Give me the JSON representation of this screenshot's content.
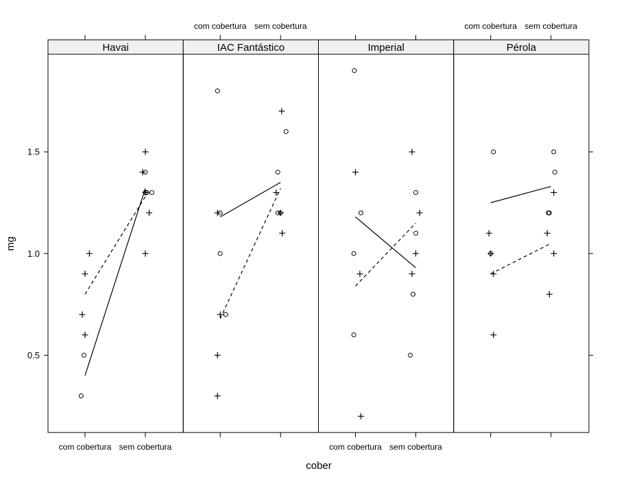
{
  "chart_data": {
    "type": "scatter",
    "title": "",
    "xlabel": "cober",
    "ylabel": "mg",
    "categories": [
      "com cobertura",
      "sem cobertura"
    ],
    "yticks": [
      "0.5",
      "1.0",
      "1.5"
    ],
    "ylim": [
      0.12,
      1.98
    ],
    "grid": false,
    "legend": "none",
    "series": [
      {
        "marker": "circle",
        "linestyle": "solid"
      },
      {
        "marker": "plus",
        "linestyle": "dashed"
      }
    ],
    "panels": [
      {
        "label": "Havai",
        "points": [
          {
            "group": 0,
            "cat": 0,
            "y": 0.3,
            "jit": -0.07
          },
          {
            "group": 0,
            "cat": 0,
            "y": 0.5,
            "jit": -0.02
          },
          {
            "group": 1,
            "cat": 0,
            "y": 0.6,
            "jit": 0.0
          },
          {
            "group": 1,
            "cat": 0,
            "y": 0.7,
            "jit": -0.05
          },
          {
            "group": 1,
            "cat": 0,
            "y": 0.9,
            "jit": 0.0
          },
          {
            "group": 1,
            "cat": 0,
            "y": 1.0,
            "jit": 0.08
          },
          {
            "group": 0,
            "cat": 1,
            "y": 1.4,
            "jit": 0.0
          },
          {
            "group": 0,
            "cat": 1,
            "y": 1.3,
            "jit": 0.0
          },
          {
            "group": 0,
            "cat": 1,
            "y": 1.3,
            "jit": 0.03
          },
          {
            "group": 0,
            "cat": 1,
            "y": 1.3,
            "jit": 0.12
          },
          {
            "group": 1,
            "cat": 1,
            "y": 1.5,
            "jit": 0.0
          },
          {
            "group": 1,
            "cat": 1,
            "y": 1.4,
            "jit": -0.05
          },
          {
            "group": 1,
            "cat": 1,
            "y": 1.3,
            "jit": 0.0
          },
          {
            "group": 1,
            "cat": 1,
            "y": 1.2,
            "jit": 0.07
          },
          {
            "group": 1,
            "cat": 1,
            "y": 1.0,
            "jit": 0.0
          }
        ],
        "lines": [
          {
            "group": 0,
            "y1": 0.4,
            "y2": 1.32
          },
          {
            "group": 1,
            "y1": 0.8,
            "y2": 1.28
          }
        ]
      },
      {
        "label": "IAC Fantástico",
        "points": [
          {
            "group": 0,
            "cat": 0,
            "y": 1.8,
            "jit": -0.05
          },
          {
            "group": 0,
            "cat": 0,
            "y": 1.2,
            "jit": 0.0
          },
          {
            "group": 0,
            "cat": 0,
            "y": 1.0,
            "jit": 0.0
          },
          {
            "group": 0,
            "cat": 0,
            "y": 0.7,
            "jit": 0.1
          },
          {
            "group": 1,
            "cat": 0,
            "y": 1.2,
            "jit": -0.05
          },
          {
            "group": 1,
            "cat": 0,
            "y": 0.7,
            "jit": 0.0
          },
          {
            "group": 1,
            "cat": 0,
            "y": 0.5,
            "jit": -0.05
          },
          {
            "group": 1,
            "cat": 0,
            "y": 0.3,
            "jit": -0.05
          },
          {
            "group": 0,
            "cat": 1,
            "y": 1.6,
            "jit": 0.1
          },
          {
            "group": 0,
            "cat": 1,
            "y": 1.4,
            "jit": -0.05
          },
          {
            "group": 0,
            "cat": 1,
            "y": 1.2,
            "jit": -0.05
          },
          {
            "group": 0,
            "cat": 1,
            "y": 1.2,
            "jit": 0.0
          },
          {
            "group": 1,
            "cat": 1,
            "y": 1.7,
            "jit": 0.02
          },
          {
            "group": 1,
            "cat": 1,
            "y": 1.3,
            "jit": -0.08
          },
          {
            "group": 1,
            "cat": 1,
            "y": 1.2,
            "jit": 0.0
          },
          {
            "group": 1,
            "cat": 1,
            "y": 1.1,
            "jit": 0.03
          }
        ],
        "lines": [
          {
            "group": 0,
            "y1": 1.18,
            "y2": 1.35
          },
          {
            "group": 1,
            "y1": 0.68,
            "y2": 1.32
          }
        ]
      },
      {
        "label": "Imperial",
        "points": [
          {
            "group": 0,
            "cat": 0,
            "y": 1.9,
            "jit": -0.02
          },
          {
            "group": 0,
            "cat": 0,
            "y": 1.2,
            "jit": 0.1
          },
          {
            "group": 0,
            "cat": 0,
            "y": 1.0,
            "jit": -0.03
          },
          {
            "group": 0,
            "cat": 0,
            "y": 0.6,
            "jit": -0.03
          },
          {
            "group": 1,
            "cat": 0,
            "y": 1.4,
            "jit": 0.0
          },
          {
            "group": 1,
            "cat": 0,
            "y": 0.9,
            "jit": 0.08
          },
          {
            "group": 1,
            "cat": 0,
            "y": 0.2,
            "jit": 0.1
          },
          {
            "group": 0,
            "cat": 1,
            "y": 1.3,
            "jit": 0.0
          },
          {
            "group": 0,
            "cat": 1,
            "y": 1.1,
            "jit": 0.0
          },
          {
            "group": 0,
            "cat": 1,
            "y": 0.8,
            "jit": -0.05
          },
          {
            "group": 0,
            "cat": 1,
            "y": 0.5,
            "jit": -0.1
          },
          {
            "group": 1,
            "cat": 1,
            "y": 1.5,
            "jit": -0.07
          },
          {
            "group": 1,
            "cat": 1,
            "y": 1.2,
            "jit": 0.07
          },
          {
            "group": 1,
            "cat": 1,
            "y": 1.0,
            "jit": 0.0
          },
          {
            "group": 1,
            "cat": 1,
            "y": 0.9,
            "jit": -0.07
          }
        ],
        "lines": [
          {
            "group": 0,
            "y1": 1.18,
            "y2": 0.93
          },
          {
            "group": 1,
            "y1": 0.84,
            "y2": 1.15
          }
        ]
      },
      {
        "label": "Pérola",
        "points": [
          {
            "group": 0,
            "cat": 0,
            "y": 1.5,
            "jit": 0.05
          },
          {
            "group": 0,
            "cat": 0,
            "y": 1.0,
            "jit": 0.0
          },
          {
            "group": 1,
            "cat": 0,
            "y": 1.1,
            "jit": -0.03
          },
          {
            "group": 1,
            "cat": 0,
            "y": 1.0,
            "jit": 0.0
          },
          {
            "group": 1,
            "cat": 0,
            "y": 0.9,
            "jit": 0.05
          },
          {
            "group": 1,
            "cat": 0,
            "y": 0.6,
            "jit": 0.05
          },
          {
            "group": 0,
            "cat": 1,
            "y": 1.5,
            "jit": 0.05
          },
          {
            "group": 0,
            "cat": 1,
            "y": 1.4,
            "jit": 0.07
          },
          {
            "group": 0,
            "cat": 1,
            "y": 1.2,
            "jit": -0.05
          },
          {
            "group": 0,
            "cat": 1,
            "y": 1.2,
            "jit": -0.03
          },
          {
            "group": 1,
            "cat": 1,
            "y": 1.3,
            "jit": 0.05
          },
          {
            "group": 1,
            "cat": 1,
            "y": 1.1,
            "jit": -0.07
          },
          {
            "group": 1,
            "cat": 1,
            "y": 1.0,
            "jit": 0.05
          },
          {
            "group": 1,
            "cat": 1,
            "y": 0.8,
            "jit": -0.03
          }
        ],
        "lines": [
          {
            "group": 0,
            "y1": 1.25,
            "y2": 1.33
          },
          {
            "group": 1,
            "y1": 0.9,
            "y2": 1.05
          }
        ]
      }
    ]
  }
}
